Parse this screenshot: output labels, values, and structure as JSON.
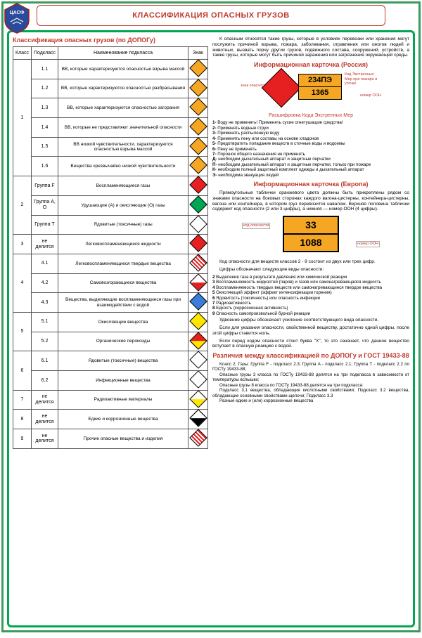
{
  "title": "КЛАССИФИКАЦИЯ ОПАСНЫХ ГРУЗОВ",
  "logo_text": "ЦАСФ",
  "table_caption": "Классификация опасных грузов (по ДОПОГу)",
  "columns": {
    "class": "Класс",
    "sub": "Подкласс",
    "name": "Наименование подкласса",
    "sign": "Знак"
  },
  "rows": [
    {
      "class": "1",
      "class_rowspan": 6,
      "sub": "1.1",
      "name": "ВВ, которые характеризуются опасностью взрыва массой",
      "color": "#f5a623"
    },
    {
      "sub": "1.2",
      "name": "ВВ, которые характеризуются опасностью разбрасывания",
      "color": "#f5a623"
    },
    {
      "sub": "1.3",
      "name": "ВВ, которые характеризуются опасностью загорания",
      "color": "#f5a623"
    },
    {
      "sub": "1.4",
      "name": "ВВ, которые не представляют значительной опасности",
      "color": "#f5a623"
    },
    {
      "sub": "1.5",
      "name": "ВВ низкой чувствительности, характеризуются опасностью взрыва массой",
      "color": "#f5a623"
    },
    {
      "sub": "1.6",
      "name": "Вещества чрезвычайно низкой чувствительности",
      "color": "#f5a623"
    },
    {
      "class": "2",
      "class_rowspan": 3,
      "sub": "Группа F",
      "name": "Воспламеняющиеся газы",
      "color": "#e62020"
    },
    {
      "sub": "Группа A, O",
      "name": "Удушающие (А) и окисляющие (О) газы",
      "color": "#00a651"
    },
    {
      "sub": "Группа T",
      "name": "Ядовитые (токсичные) газы",
      "color": "#ffffff"
    },
    {
      "class": "3",
      "sub": "не делится",
      "name": "Легковоспламеняющиеся жидкости",
      "color": "#e62020"
    },
    {
      "class": "4",
      "class_rowspan": 3,
      "sub": "4.1",
      "name": "Легковоспламеняющиеся твердые вещества",
      "color": "#ffffff",
      "stripes": true
    },
    {
      "sub": "4.2",
      "name": "Самовозгорающиеся вещества",
      "color": "#ffffff",
      "half": "#e62020"
    },
    {
      "sub": "4.3",
      "name": "Вещества, выделяющие воспламеняющиеся газы при взаимодействии с водой",
      "color": "#3b7dd8"
    },
    {
      "class": "5",
      "class_rowspan": 2,
      "sub": "5.1",
      "name": "Окисляющие вещества",
      "color": "#ffe600"
    },
    {
      "sub": "5.2",
      "name": "Органические пероксиды",
      "color": "#e62020",
      "half": "#ffe600"
    },
    {
      "class": "6",
      "class_rowspan": 2,
      "sub": "6.1",
      "name": "Ядовитые (токсичные) вещества",
      "color": "#ffffff"
    },
    {
      "sub": "6.2",
      "name": "Инфекционные вещества",
      "color": "#ffffff"
    },
    {
      "class": "7",
      "sub": "не делится",
      "name": "Радиоактивные материалы",
      "color": "#ffffff",
      "half": "#ffe600"
    },
    {
      "class": "8",
      "sub": "не делится",
      "name": "Едкие и коррозионные вещества",
      "color": "#ffffff",
      "half": "#000000"
    },
    {
      "class": "9",
      "sub": "не делится",
      "name": "Прочие опасные вещества и изделия",
      "color": "#ffffff",
      "stripes": true
    }
  ],
  "intro_para": "К опасным относятся такие грузы, которые в условиях перевозки или хранения могут послужить причиной взрыва, пожара, заболевания, отравления или ожогов людей и животных, вызвать порчу других грузов, подвижного состава, сооружений, устройств, а также грузы, которые могут быть причиной заражения или загрязнения окружающей среды.",
  "card_ru_heading": "Информационная карточка (Россия)",
  "card_ru": {
    "code1": "234ПЭ",
    "code2": "1365",
    "lbl_sign": "знак опасности",
    "lbl_code": "Код Экстренных Мер при пожаре и утечке",
    "lbl_un": "номер ООН"
  },
  "decode_heading": "Расшифровка Кода Экстренных Мер",
  "em_codes": [
    "1- Воду не применять! Применять сухие огнетушащие средства!",
    "2- Применять водные струи",
    "3- Применять распыленную воду",
    "4- Применять пену или составы на основе хладонов",
    "5- Предотвратить попадание веществ в сточные воды и водоемы",
    "6- Пену не применять",
    "7- Порошок общего назначения не применять",
    "Д- необходим дыхательный аппарат и защитные перчатки",
    "П- необходим дыхательный аппарат и защитные перчатки, только при пожаре",
    "К- необходим полный защитный комплект одежды и дыхательный аппарат",
    "Э- необходима эвакуация людей"
  ],
  "card_eu_heading": "Информационная карточка (Европа)",
  "card_eu_para": "Прямоугольные таблички оранжевого цвета должны быть прикреплены рядом со знаками опасности на боковых сторонах каждого вагона-цистерны, контейнера-цистерны, вагона или контейнера, в котором груз перевозится навалом. Верхняя половина таблички содержит код опасности (2 или 3 цифры), а нижняя — номер ООН (4 цифры).",
  "card_eu": {
    "code1": "33",
    "code2": "1088",
    "lbl_code": "код опасности",
    "lbl_un": "номер ООН"
  },
  "digits_intro": "Код опасности для веществ классов 2 - 9 состоит из двух или трех цифр.",
  "digits_heading": "Цифры обозначают следующие виды опасности:",
  "digits": [
    "2 Выделение газа в результате давления или химической реакции",
    "3 Воспламеняемость жидкостей (паров) и газов или самонагревающаяся жидкость",
    "4 Воспламеняемость твердых веществ или самонагревающиеся твердое вещества",
    "5 Окисляющий эффект (эффект интенсификации горения)",
    "6 Ядовитость (токсичность) или опасность инфекции",
    "7 Радиоактивность",
    "8 Едкость (коррозионная активность)",
    "9 Опасность самопроизвольной бурной реакции"
  ],
  "digits_note1": "Удвоение цифры обозначает усиление соответствующего вида опасности.",
  "digits_note2": "Если для указания опасности, свойственной веществу, достаточно одной цифры, после этой цифры ставится ноль.",
  "digits_note3": "Если перед кодом опасности стоит буква \"X\", то это означает, что данное вещество вступает в опасную реакцию с водой.",
  "diff_heading": "Различия между классификацией по ДОПОГу и ГОСТ 19433-88",
  "diff_items": [
    "Класс 2. Газы: Группа F - подкласс 2.3; Группа A - подкласс 2.1; Группа T - подкласс 2.2 по ГОСТу 19433-88;",
    "Опасные грузы 3 класса по ГОСТу 19433-88 делятся на три подкласса в зависимости от температуры вспышки;",
    "Опасные грузы 8 класса по  ГОСТу 19433-88 делятся на три подкласса:",
    "Подкласс 3.1 вещества, обладающие кислотными свойствами; Подкласс 3.2 вещества, обладающие основными свойствами щелочи; Подкласс 3.3",
    "Разные едкие и (или) коррозионные вещества"
  ]
}
